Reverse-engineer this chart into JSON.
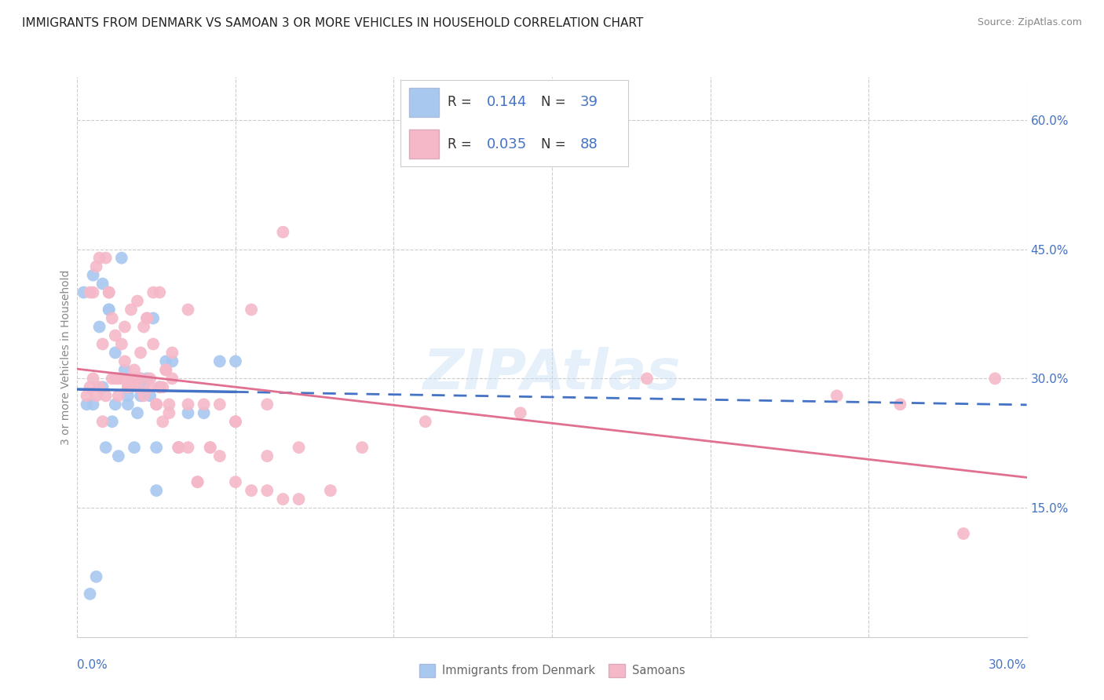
{
  "title": "IMMIGRANTS FROM DENMARK VS SAMOAN 3 OR MORE VEHICLES IN HOUSEHOLD CORRELATION CHART",
  "source": "Source: ZipAtlas.com",
  "ylabel": "3 or more Vehicles in Household",
  "ytick_values": [
    15,
    30,
    45,
    60
  ],
  "xlim": [
    0,
    30
  ],
  "ylim": [
    0,
    65
  ],
  "r_denmark": 0.144,
  "n_denmark": 39,
  "r_samoan": 0.035,
  "n_samoan": 88,
  "color_denmark": "#a8c8f0",
  "color_samoan": "#f5b8c8",
  "line_color_denmark": "#4472c4",
  "line_color_samoan": "#e07090",
  "dk_x": [
    0.3,
    0.8,
    1.0,
    1.2,
    1.5,
    1.7,
    2.0,
    2.2,
    2.4,
    2.6,
    0.5,
    0.7,
    0.9,
    1.1,
    1.3,
    1.6,
    1.9,
    2.1,
    2.5,
    2.8,
    0.4,
    0.6,
    1.0,
    1.4,
    1.8,
    2.3,
    3.0,
    3.5,
    0.2,
    0.5,
    0.8,
    1.2,
    1.6,
    2.0,
    2.5,
    3.2,
    4.0,
    4.5,
    5.0
  ],
  "dk_y": [
    27,
    41,
    38,
    33,
    31,
    29,
    28,
    30,
    37,
    29,
    42,
    36,
    22,
    25,
    21,
    27,
    26,
    29,
    17,
    32,
    5,
    7,
    38,
    44,
    22,
    28,
    32,
    26,
    40,
    27,
    29,
    27,
    28,
    30,
    22,
    22,
    26,
    32,
    32
  ],
  "sa_x": [
    0.5,
    0.7,
    0.9,
    1.1,
    1.3,
    1.5,
    1.7,
    1.9,
    2.1,
    2.3,
    2.5,
    2.7,
    2.9,
    3.2,
    3.5,
    3.8,
    4.0,
    4.5,
    5.0,
    5.5,
    6.0,
    6.5,
    7.0,
    0.4,
    0.6,
    0.8,
    1.0,
    1.2,
    1.4,
    1.6,
    1.8,
    2.0,
    2.2,
    2.4,
    2.6,
    2.8,
    3.0,
    3.5,
    4.2,
    5.5,
    6.5,
    0.3,
    0.5,
    0.7,
    0.9,
    1.1,
    1.3,
    1.5,
    1.7,
    1.9,
    2.1,
    2.3,
    2.5,
    2.7,
    2.9,
    3.2,
    3.8,
    4.5,
    5.0,
    6.0,
    0.4,
    0.6,
    0.8,
    1.0,
    1.2,
    1.4,
    1.6,
    1.8,
    2.0,
    2.2,
    2.4,
    2.6,
    2.8,
    3.0,
    3.5,
    4.2,
    5.0,
    6.0,
    7.0,
    8.0,
    9.0,
    11.0,
    14.0,
    18.0,
    24.0,
    26.0,
    28.0,
    29.0
  ],
  "sa_y": [
    30,
    29,
    28,
    30,
    28,
    32,
    30,
    29,
    28,
    30,
    27,
    29,
    26,
    22,
    27,
    18,
    27,
    21,
    25,
    17,
    21,
    16,
    22,
    40,
    43,
    34,
    40,
    35,
    30,
    29,
    30,
    33,
    37,
    34,
    29,
    31,
    33,
    38,
    22,
    38,
    47,
    28,
    40,
    44,
    44,
    37,
    30,
    36,
    38,
    39,
    36,
    29,
    27,
    25,
    27,
    22,
    18,
    27,
    25,
    27,
    29,
    28,
    25,
    40,
    30,
    34,
    29,
    31,
    30,
    37,
    40,
    40,
    31,
    30,
    22,
    22,
    18,
    17,
    16,
    17,
    22,
    25,
    26,
    30,
    28,
    27,
    12,
    30
  ]
}
